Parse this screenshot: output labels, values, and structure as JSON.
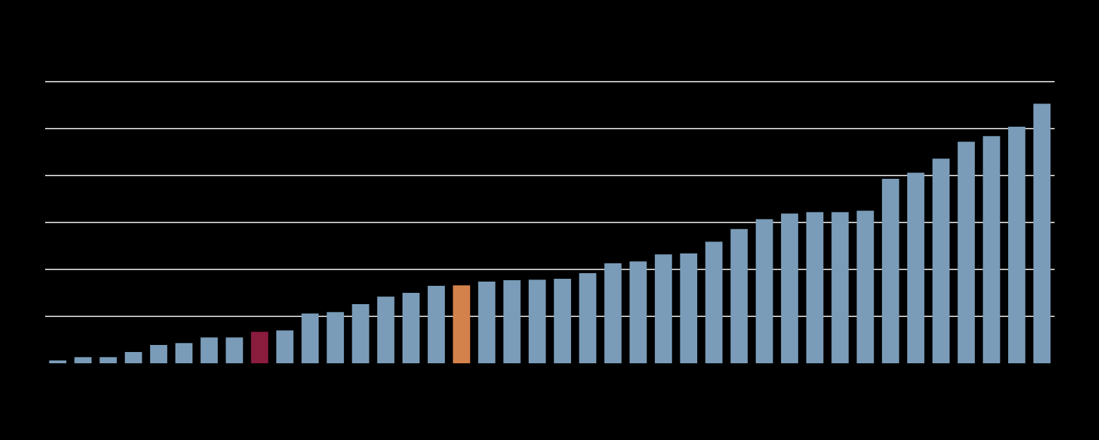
{
  "chart_data": {
    "type": "bar",
    "categories": [
      null,
      null,
      null,
      null,
      null,
      null,
      null,
      null,
      null,
      null,
      null,
      null,
      null,
      null,
      null,
      null,
      null,
      null,
      null,
      null,
      null,
      null,
      null,
      null,
      null,
      null,
      null,
      null,
      null,
      null,
      null,
      null,
      null,
      null,
      null,
      null,
      null,
      null,
      null,
      null
    ],
    "values": [
      0.06,
      0.13,
      0.13,
      0.24,
      0.39,
      0.43,
      0.55,
      0.55,
      0.67,
      0.7,
      1.06,
      1.09,
      1.26,
      1.42,
      1.5,
      1.65,
      1.66,
      1.74,
      1.77,
      1.78,
      1.8,
      1.92,
      2.13,
      2.17,
      2.32,
      2.34,
      2.59,
      2.86,
      3.07,
      3.19,
      3.22,
      3.22,
      3.25,
      3.93,
      4.06,
      4.36,
      4.72,
      4.84,
      5.04,
      5.53
    ],
    "colors": [
      "#7a9cb8",
      "#7a9cb8",
      "#7a9cb8",
      "#7a9cb8",
      "#7a9cb8",
      "#7a9cb8",
      "#7a9cb8",
      "#7a9cb8",
      "#8a1c3e",
      "#7a9cb8",
      "#7a9cb8",
      "#7a9cb8",
      "#7a9cb8",
      "#7a9cb8",
      "#7a9cb8",
      "#7a9cb8",
      "#d4824c",
      "#7a9cb8",
      "#7a9cb8",
      "#7a9cb8",
      "#7a9cb8",
      "#7a9cb8",
      "#7a9cb8",
      "#7a9cb8",
      "#7a9cb8",
      "#7a9cb8",
      "#7a9cb8",
      "#7a9cb8",
      "#7a9cb8",
      "#7a9cb8",
      "#7a9cb8",
      "#7a9cb8",
      "#7a9cb8",
      "#7a9cb8",
      "#7a9cb8",
      "#7a9cb8",
      "#7a9cb8",
      "#7a9cb8",
      "#7a9cb8",
      "#7a9cb8"
    ],
    "ylim": [
      0,
      6
    ],
    "yticks": [
      1,
      2,
      3,
      4,
      5,
      6
    ],
    "grid": true,
    "grid_color": "#ffffff"
  }
}
